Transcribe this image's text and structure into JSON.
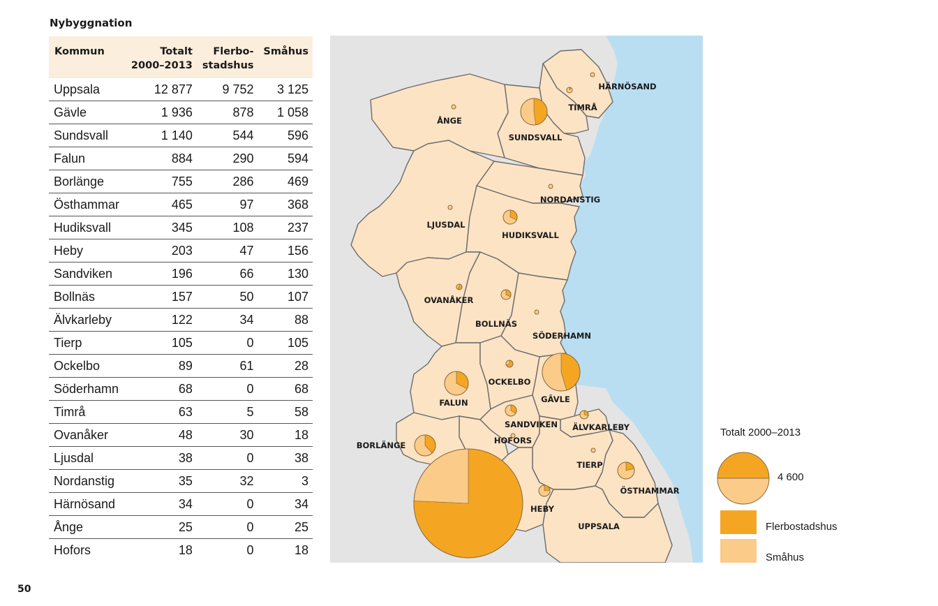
{
  "table": {
    "title": "Nybyggnation",
    "headers": {
      "kommun": "Kommun",
      "totalt_line1": "Totalt",
      "totalt_line2": "2000–2013",
      "flerbo_line1": "Flerbo-",
      "flerbo_line2": "stadshus",
      "smahus": "Småhus"
    },
    "rows": [
      {
        "kommun": "Uppsala",
        "totalt": "12 877",
        "flerbostadshus": "9 752",
        "smahus": "3 125"
      },
      {
        "kommun": "Gävle",
        "totalt": "1 936",
        "flerbostadshus": "878",
        "smahus": "1 058"
      },
      {
        "kommun": "Sundsvall",
        "totalt": "1 140",
        "flerbostadshus": "544",
        "smahus": "596"
      },
      {
        "kommun": "Falun",
        "totalt": "884",
        "flerbostadshus": "290",
        "smahus": "594"
      },
      {
        "kommun": "Borlänge",
        "totalt": "755",
        "flerbostadshus": "286",
        "smahus": "469"
      },
      {
        "kommun": "Östhammar",
        "totalt": "465",
        "flerbostadshus": "97",
        "smahus": "368"
      },
      {
        "kommun": "Hudiksvall",
        "totalt": "345",
        "flerbostadshus": "108",
        "smahus": "237"
      },
      {
        "kommun": "Heby",
        "totalt": "203",
        "flerbostadshus": "47",
        "smahus": "156"
      },
      {
        "kommun": "Sandviken",
        "totalt": "196",
        "flerbostadshus": "66",
        "smahus": "130"
      },
      {
        "kommun": "Bollnäs",
        "totalt": "157",
        "flerbostadshus": "50",
        "smahus": "107"
      },
      {
        "kommun": "Älvkarleby",
        "totalt": "122",
        "flerbostadshus": "34",
        "smahus": "88"
      },
      {
        "kommun": "Tierp",
        "totalt": "105",
        "flerbostadshus": "0",
        "smahus": "105"
      },
      {
        "kommun": "Ockelbo",
        "totalt": "89",
        "flerbostadshus": "61",
        "smahus": "28"
      },
      {
        "kommun": "Söderhamn",
        "totalt": "68",
        "flerbostadshus": "0",
        "smahus": "68"
      },
      {
        "kommun": "Timrå",
        "totalt": "63",
        "flerbostadshus": "5",
        "smahus": "58"
      },
      {
        "kommun": "Ovanåker",
        "totalt": "48",
        "flerbostadshus": "30",
        "smahus": "18"
      },
      {
        "kommun": "Ljusdal",
        "totalt": "38",
        "flerbostadshus": "0",
        "smahus": "38"
      },
      {
        "kommun": "Nordanstig",
        "totalt": "35",
        "flerbostadshus": "32",
        "smahus": "3"
      },
      {
        "kommun": "Härnösand",
        "totalt": "34",
        "flerbostadshus": "0",
        "smahus": "34"
      },
      {
        "kommun": "Ånge",
        "totalt": "25",
        "flerbostadshus": "0",
        "smahus": "25"
      },
      {
        "kommun": "Hofors",
        "totalt": "18",
        "flerbostadshus": "0",
        "smahus": "18"
      }
    ]
  },
  "map": {
    "labels": [
      "HÄRNÖSAND",
      "TIMRÅ",
      "ÅNGE",
      "SUNDSVALL",
      "NORDANSTIG",
      "LJUSDAL",
      "HUDIKSVALL",
      "OVANÅKER",
      "BOLLNÄS",
      "SÖDERHAMN",
      "OCKELBO",
      "FALUN",
      "GÄVLE",
      "SANDVIKEN",
      "ÄLVKARLEBY",
      "BORLÄNGE",
      "HOFORS",
      "TIERP",
      "ÖSTHAMMAR",
      "HEBY",
      "UPPSALA"
    ],
    "pies": [
      {
        "kommun": "Uppsala",
        "flerbostadshus": 9752,
        "smahus": 3125
      },
      {
        "kommun": "Gävle",
        "flerbostadshus": 878,
        "smahus": 1058
      },
      {
        "kommun": "Sundsvall",
        "flerbostadshus": 544,
        "smahus": 596
      },
      {
        "kommun": "Falun",
        "flerbostadshus": 290,
        "smahus": 594
      },
      {
        "kommun": "Borlänge",
        "flerbostadshus": 286,
        "smahus": 469
      },
      {
        "kommun": "Östhammar",
        "flerbostadshus": 97,
        "smahus": 368
      },
      {
        "kommun": "Hudiksvall",
        "flerbostadshus": 108,
        "smahus": 237
      },
      {
        "kommun": "Heby",
        "flerbostadshus": 47,
        "smahus": 156
      },
      {
        "kommun": "Sandviken",
        "flerbostadshus": 66,
        "smahus": 130
      },
      {
        "kommun": "Bollnäs",
        "flerbostadshus": 50,
        "smahus": 107
      },
      {
        "kommun": "Älvkarleby",
        "flerbostadshus": 34,
        "smahus": 88
      },
      {
        "kommun": "Ockelbo",
        "flerbostadshus": 61,
        "smahus": 28
      },
      {
        "kommun": "Ovanåker",
        "flerbostadshus": 30,
        "smahus": 18
      },
      {
        "kommun": "Timrå",
        "flerbostadshus": 5,
        "smahus": 58
      }
    ],
    "dots": [
      "Härnösand",
      "Ånge",
      "Nordanstig",
      "Ljusdal",
      "Söderhamn",
      "Tierp",
      "Hofors"
    ],
    "colors": {
      "sea": "#b9def2",
      "land_outside": "#e4e4e4",
      "region": "#fce3c4",
      "border": "#6b6b6b",
      "flerbostadshus": "#f4a623",
      "smahus": "#fbcb8a",
      "pie_outline": "#8a6a3e"
    }
  },
  "legend": {
    "title": "Totalt 2000–2013",
    "total_value": "4 600",
    "flerbostadshus": "Flerbostadshus",
    "smahus": "Småhus"
  },
  "page_number": "50"
}
